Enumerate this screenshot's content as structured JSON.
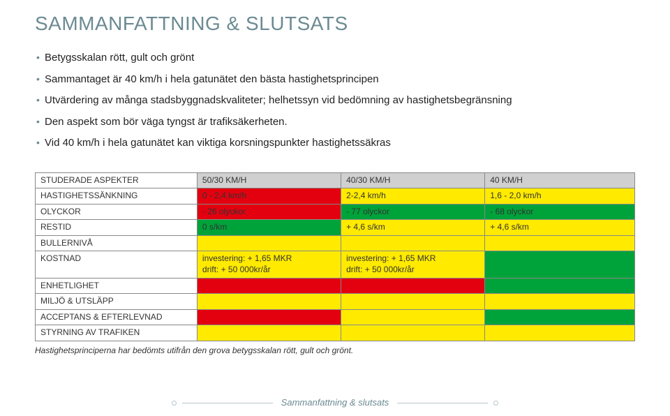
{
  "colors": {
    "heading": "#6b8a93",
    "red": "#e3000f",
    "yellow": "#ffea00",
    "green": "#00a33a",
    "gray": "#d0d0d0",
    "border": "#888888"
  },
  "title": "SAMMANFATTNING & SLUTSATS",
  "bullets": [
    "Betygsskalan rött, gult och grönt",
    "Sammantaget är 40 km/h i hela gatunätet den bästa hastighetsprincipen",
    "Utvärdering av många stadsbyggnadskvaliteter; helhetssyn vid bedömning av hastighetsbegränsning",
    "Den aspekt som bör väga tyngst är trafiksäkerheten.",
    "Vid 40 km/h i hela gatunätet kan viktiga korsningspunkter hastighetssäkras"
  ],
  "table": {
    "header": [
      "STUDERADE ASPEKTER",
      "50/30 KM/H",
      "40/30 KM/H",
      "40 KM/H"
    ],
    "header_bg": [
      "#ffffff",
      "#d0d0d0",
      "#d0d0d0",
      "#d0d0d0"
    ],
    "rows": [
      {
        "label": "HASTIGHETSSÄNKNING",
        "cells": [
          "0 - 2,4 km/h",
          "2-2,4 km/h",
          "1,6 - 2,0 km/h"
        ],
        "bg": [
          "#e3000f",
          "#ffea00",
          "#ffea00"
        ]
      },
      {
        "label": "OLYCKOR",
        "cells": [
          "- 26 olyckor",
          "- 77 olyckor",
          "- 68 olyckor"
        ],
        "bg": [
          "#e3000f",
          "#00a33a",
          "#00a33a"
        ]
      },
      {
        "label": "RESTID",
        "cells": [
          "0 s/km",
          "+ 4,6 s/km",
          "+ 4,6 s/km"
        ],
        "bg": [
          "#00a33a",
          "#ffea00",
          "#ffea00"
        ]
      },
      {
        "label": "BULLERNIVÅ",
        "cells": [
          "",
          "",
          ""
        ],
        "bg": [
          "#ffea00",
          "#ffea00",
          "#ffea00"
        ]
      },
      {
        "label": "KOSTNAD",
        "cells": [
          "investering: + 1,65 MKR\ndrift: + 50 000kr/år",
          "investering: + 1,65 MKR\ndrift: + 50 000kr/år",
          ""
        ],
        "bg": [
          "#ffea00",
          "#ffea00",
          "#00a33a"
        ]
      },
      {
        "label": "ENHETLIGHET",
        "cells": [
          "",
          "",
          ""
        ],
        "bg": [
          "#e3000f",
          "#e3000f",
          "#00a33a"
        ]
      },
      {
        "label": "MILJÖ & UTSLÄPP",
        "cells": [
          "",
          "",
          ""
        ],
        "bg": [
          "#ffea00",
          "#ffea00",
          "#ffea00"
        ]
      },
      {
        "label": "ACCEPTANS & EFTERLEVNAD",
        "cells": [
          "",
          "",
          ""
        ],
        "bg": [
          "#e3000f",
          "#ffea00",
          "#00a33a"
        ]
      },
      {
        "label": "STYRNING AV TRAFIKEN",
        "cells": [
          "",
          "",
          ""
        ],
        "bg": [
          "#ffea00",
          "#ffea00",
          "#ffea00"
        ]
      }
    ]
  },
  "caption": "Hastighetsprinciperna har bedömts utifrån den grova betygsskalan rött, gult och grönt.",
  "footer": "Sammanfattning & slutsats"
}
